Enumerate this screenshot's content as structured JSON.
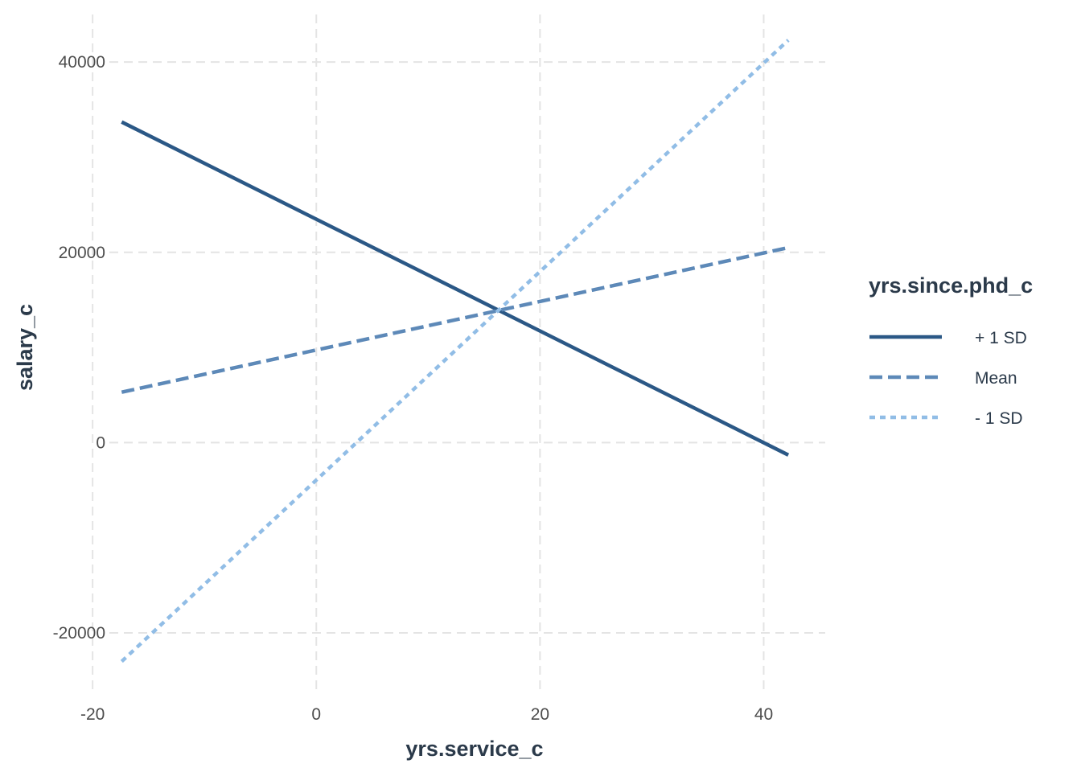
{
  "chart_data": {
    "type": "line",
    "title": "",
    "xlabel": "yrs.service_c",
    "ylabel": "salary_c",
    "xlim": [
      -18.5,
      45.5
    ],
    "ylim": [
      -26000,
      45000
    ],
    "xticks": [
      -20,
      0,
      20,
      40
    ],
    "yticks": [
      -20000,
      0,
      20000,
      40000
    ],
    "xtick_labels": [
      "-20",
      "0",
      "20",
      "40"
    ],
    "ytick_labels": [
      "-20000",
      "0",
      "20000",
      "40000"
    ],
    "grid": true,
    "legend_position": "right",
    "legend_title": "yrs.since.phd_c",
    "series": [
      {
        "name": "+ 1 SD",
        "color": "#2b5886",
        "dash": "solid",
        "x": [
          -17.4,
          42.2
        ],
        "y": [
          33700,
          -1300
        ]
      },
      {
        "name": "Mean",
        "color": "#5d89b8",
        "dash": "dashed",
        "x": [
          -17.4,
          42.2
        ],
        "y": [
          5300,
          20500
        ]
      },
      {
        "name": "- 1 SD",
        "color": "#91bde6",
        "dash": "dotted",
        "x": [
          -17.4,
          42.2
        ],
        "y": [
          -23000,
          42300
        ]
      }
    ]
  }
}
